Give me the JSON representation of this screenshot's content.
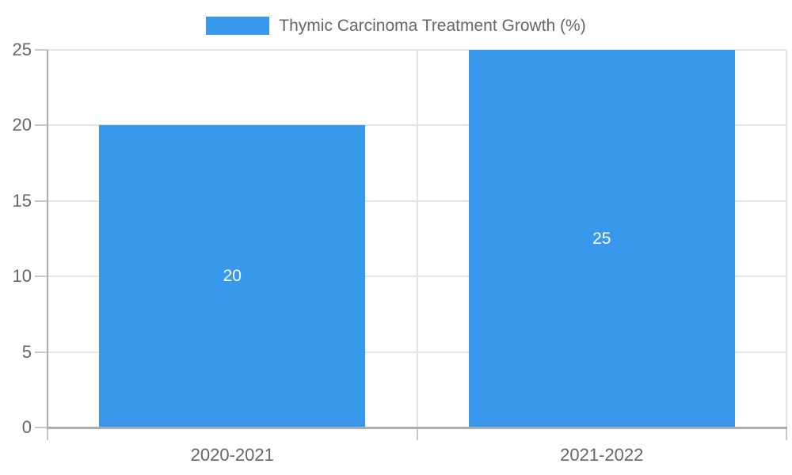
{
  "chart_data": {
    "type": "bar",
    "legend": {
      "position": "top",
      "label": "Thymic Carcinoma Treatment Growth (%)"
    },
    "categories": [
      "2020-2021",
      "2021-2022"
    ],
    "values": [
      20,
      25
    ],
    "data_labels": [
      "20",
      "25"
    ],
    "ylim": [
      0,
      25
    ],
    "yticks": [
      0,
      5,
      10,
      15,
      20,
      25
    ],
    "grid": true,
    "colors": {
      "bar": "#3899EC",
      "grid": "#E5E5E5",
      "axis_line": "#ACACAC",
      "tick_mark": "#C8C8C8",
      "tick_text": "#666666",
      "data_label_text": "#FFFFFF",
      "background": "#FFFFFF"
    }
  }
}
